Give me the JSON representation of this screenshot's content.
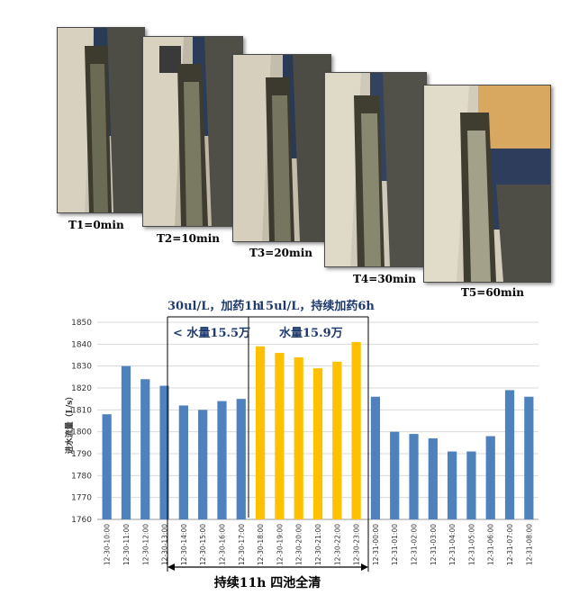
{
  "photos": [
    {
      "caption": "T1=0min"
    },
    {
      "caption": "T2=10min"
    },
    {
      "caption": "T3=20min"
    },
    {
      "caption": "T4=30min"
    },
    {
      "caption": "T5=60min"
    }
  ],
  "chart_data": {
    "type": "bar",
    "ylabel": "进水流量（L/s）",
    "ylim": [
      1760,
      1850
    ],
    "yticks": [
      1760,
      1770,
      1780,
      1790,
      1800,
      1810,
      1820,
      1830,
      1840,
      1850
    ],
    "categories": [
      "12-30-10:00",
      "12-30-11:00",
      "12-30-12:00",
      "12-30-13:00",
      "12-30-14:00",
      "12-30-15:00",
      "12-30-16:00",
      "12-30-17:00",
      "12-30-18:00",
      "12-30-19:00",
      "12-30-20:00",
      "12-30-21:00",
      "12-30-22:00",
      "12-30-23:00",
      "12-31-00:00",
      "12-31-01:00",
      "12-31-02:00",
      "12-31-03:00",
      "12-31-04:00",
      "12-31-05:00",
      "12-31-06:00",
      "12-31-07:00",
      "12-31-08:00"
    ],
    "values": [
      1808,
      1830,
      1824,
      1821,
      1812,
      1810,
      1814,
      1815,
      1839,
      1836,
      1834,
      1829,
      1832,
      1841,
      1816,
      1800,
      1799,
      1797,
      1791,
      1791,
      1798,
      1819,
      1816
    ],
    "highlight_range": [
      8,
      13
    ],
    "colors": {
      "normal": "#4f81bd",
      "highlight": "#ffc000"
    },
    "annotations": {
      "dose1": "30ul/L，加药1h",
      "dose2": "15ul/L，持续加药6h",
      "water1": "< 水量15.5万",
      "water2": "水量15.9万",
      "duration": "持续11h 四池全清"
    }
  }
}
